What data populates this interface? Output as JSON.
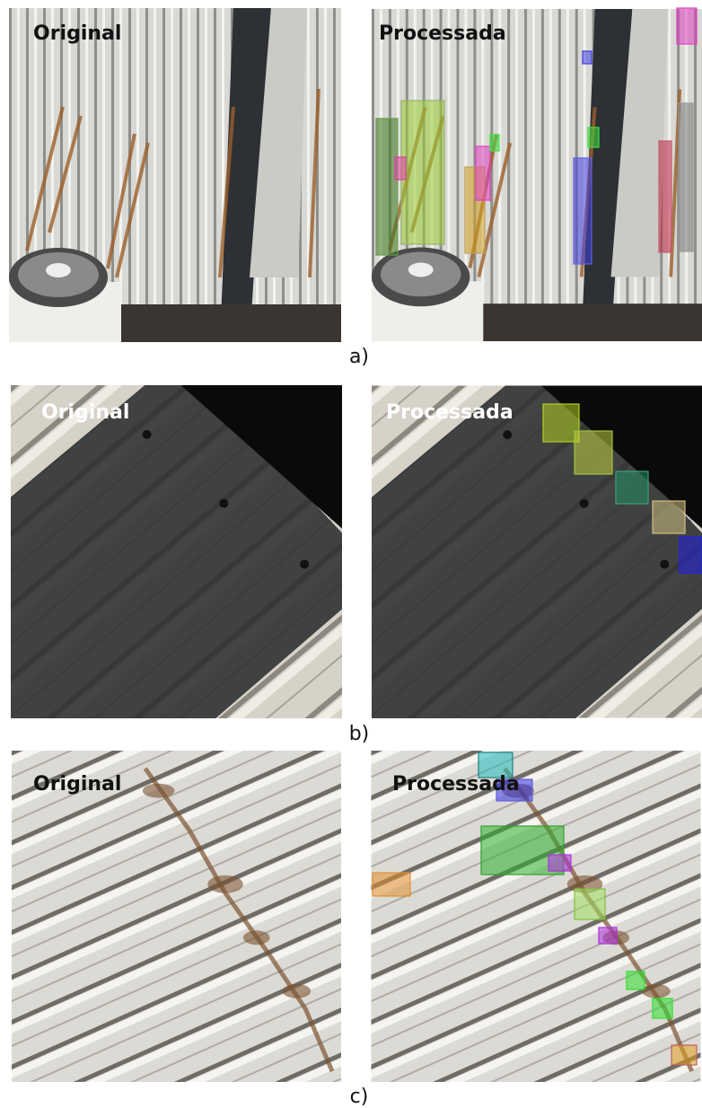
{
  "panels": [
    {
      "original_label": "Original",
      "processed_label": "Processada",
      "caption": "a)"
    },
    {
      "original_label": "Original",
      "processed_label": "Processada",
      "caption": "b)"
    },
    {
      "original_label": "Original",
      "processed_label": "Processada",
      "caption": "c)"
    }
  ]
}
